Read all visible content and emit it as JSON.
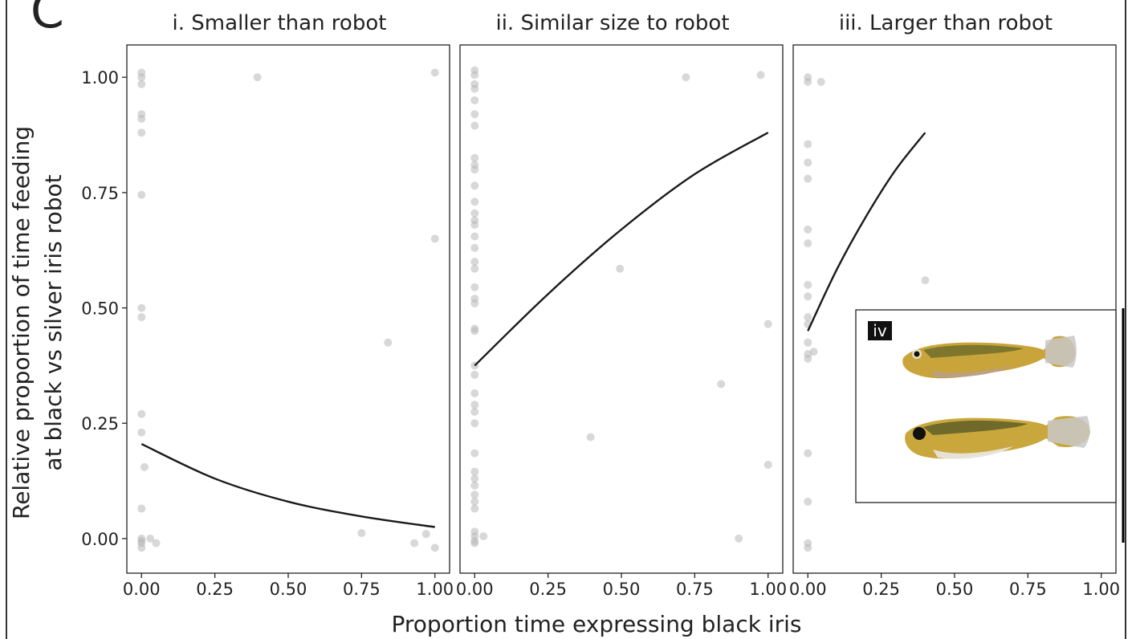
{
  "panel_letter": "C",
  "xlabel": "Proportion time expressing black iris",
  "ylabel_line1": "Relative proportion of time feeding",
  "ylabel_line2": "at black vs silver iris robot",
  "inset_tag": "iv",
  "colors": {
    "points": "#b8b8b8",
    "fit": "#1a1a1a",
    "frame": "#222222"
  },
  "chart_data": [
    {
      "type": "scatter",
      "title": "i. Smaller than robot",
      "x_ticks": [
        "0.00",
        "0.25",
        "0.50",
        "0.75",
        "1.00"
      ],
      "y_ticks": [
        "0.00",
        "0.25",
        "0.50",
        "0.75",
        "1.00"
      ],
      "xlim": [
        -0.05,
        1.05
      ],
      "ylim": [
        -0.075,
        1.07
      ],
      "points": [
        [
          0.0,
          1.01
        ],
        [
          0.0,
          1.0
        ],
        [
          0.0,
          0.985
        ],
        [
          0.0,
          0.92
        ],
        [
          0.0,
          0.91
        ],
        [
          0.0,
          0.88
        ],
        [
          0.0,
          0.745
        ],
        [
          0.0,
          0.5
        ],
        [
          0.0,
          0.48
        ],
        [
          0.0,
          0.27
        ],
        [
          0.0,
          0.23
        ],
        [
          0.0,
          0.065
        ],
        [
          0.0,
          0.0
        ],
        [
          0.0,
          -0.005
        ],
        [
          0.0,
          -0.01
        ],
        [
          0.0,
          -0.02
        ],
        [
          0.01,
          0.155
        ],
        [
          0.03,
          0.0
        ],
        [
          0.05,
          -0.01
        ],
        [
          0.395,
          1.0
        ],
        [
          0.75,
          0.012
        ],
        [
          0.84,
          0.425
        ],
        [
          0.93,
          -0.01
        ],
        [
          0.97,
          0.01
        ],
        [
          1.0,
          1.01
        ],
        [
          1.0,
          0.65
        ],
        [
          1.0,
          -0.02
        ]
      ],
      "fit": [
        [
          0.0,
          0.205
        ],
        [
          0.25,
          0.13
        ],
        [
          0.5,
          0.08
        ],
        [
          0.75,
          0.048
        ],
        [
          1.0,
          0.025
        ]
      ]
    },
    {
      "type": "scatter",
      "title": "ii. Similar size to robot",
      "x_ticks": [
        "0.00",
        "0.25",
        "0.50",
        "0.75",
        "1.00"
      ],
      "y_ticks": [
        "0.00",
        "0.25",
        "0.50",
        "0.75",
        "1.00"
      ],
      "xlim": [
        -0.05,
        1.05
      ],
      "ylim": [
        -0.075,
        1.07
      ],
      "points": [
        [
          0.0,
          1.015
        ],
        [
          0.0,
          1.005
        ],
        [
          0.0,
          0.985
        ],
        [
          0.0,
          0.975
        ],
        [
          0.0,
          0.95
        ],
        [
          0.0,
          0.92
        ],
        [
          0.0,
          0.895
        ],
        [
          0.0,
          0.825
        ],
        [
          0.0,
          0.81
        ],
        [
          0.0,
          0.8
        ],
        [
          0.0,
          0.765
        ],
        [
          0.0,
          0.73
        ],
        [
          0.0,
          0.705
        ],
        [
          0.0,
          0.69
        ],
        [
          0.0,
          0.68
        ],
        [
          0.0,
          0.655
        ],
        [
          0.0,
          0.63
        ],
        [
          0.0,
          0.6
        ],
        [
          0.0,
          0.585
        ],
        [
          0.0,
          0.545
        ],
        [
          0.0,
          0.52
        ],
        [
          0.0,
          0.51
        ],
        [
          0.0,
          0.455
        ],
        [
          0.0,
          0.45
        ],
        [
          0.0,
          0.375
        ],
        [
          0.0,
          0.355
        ],
        [
          0.0,
          0.315
        ],
        [
          0.0,
          0.29
        ],
        [
          0.0,
          0.275
        ],
        [
          0.0,
          0.25
        ],
        [
          0.0,
          0.185
        ],
        [
          0.0,
          0.145
        ],
        [
          0.0,
          0.13
        ],
        [
          0.0,
          0.115
        ],
        [
          0.0,
          0.095
        ],
        [
          0.0,
          0.08
        ],
        [
          0.0,
          0.065
        ],
        [
          0.0,
          0.015
        ],
        [
          0.0,
          0.005
        ],
        [
          0.0,
          -0.005
        ],
        [
          0.0,
          -0.01
        ],
        [
          0.03,
          0.005
        ],
        [
          0.395,
          0.22
        ],
        [
          0.495,
          0.585
        ],
        [
          0.72,
          1.0
        ],
        [
          0.84,
          0.335
        ],
        [
          0.9,
          0.0
        ],
        [
          0.975,
          1.005
        ],
        [
          1.0,
          0.465
        ],
        [
          1.0,
          0.16
        ]
      ],
      "fit": [
        [
          0.0,
          0.375
        ],
        [
          0.25,
          0.53
        ],
        [
          0.5,
          0.67
        ],
        [
          0.75,
          0.79
        ],
        [
          1.0,
          0.88
        ]
      ]
    },
    {
      "type": "scatter",
      "title": "iii. Larger than robot",
      "x_ticks": [
        "0.00",
        "0.25",
        "0.50",
        "0.75",
        "1.00"
      ],
      "y_ticks": [
        "0.00",
        "0.25",
        "0.50",
        "0.75",
        "1.00"
      ],
      "xlim": [
        -0.05,
        1.05
      ],
      "ylim": [
        -0.075,
        1.07
      ],
      "points": [
        [
          0.0,
          1.0
        ],
        [
          0.0,
          0.99
        ],
        [
          0.0,
          0.855
        ],
        [
          0.0,
          0.815
        ],
        [
          0.0,
          0.78
        ],
        [
          0.0,
          0.67
        ],
        [
          0.0,
          0.64
        ],
        [
          0.0,
          0.55
        ],
        [
          0.0,
          0.525
        ],
        [
          0.0,
          0.48
        ],
        [
          0.0,
          0.465
        ],
        [
          0.0,
          0.425
        ],
        [
          0.0,
          0.4
        ],
        [
          0.0,
          0.39
        ],
        [
          0.0,
          0.185
        ],
        [
          0.0,
          0.08
        ],
        [
          0.0,
          -0.01
        ],
        [
          0.0,
          -0.02
        ],
        [
          0.02,
          0.405
        ],
        [
          0.045,
          0.99
        ],
        [
          0.4,
          0.56
        ]
      ],
      "fit": [
        [
          0.0,
          0.45
        ],
        [
          0.1,
          0.585
        ],
        [
          0.2,
          0.7
        ],
        [
          0.3,
          0.8
        ],
        [
          0.4,
          0.88
        ]
      ]
    }
  ]
}
